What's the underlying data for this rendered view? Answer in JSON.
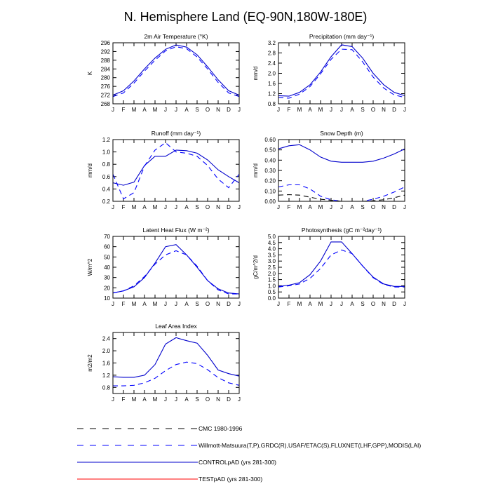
{
  "figure_title": "N. Hemisphere Land (EQ-90N,180W-180E)",
  "legend": [
    {
      "label": "CMC 1980-1996",
      "color": "#000000",
      "dash": "dash"
    },
    {
      "label": "Willmott-Matsuura(T,P),GRDC(R),USAF/ETAC(S),FLUXNET(LHF,GPP),MODIS(LAI)",
      "color": "#0000ff",
      "dash": "dash"
    },
    {
      "label": "CONTROLpAD (yrs 281-300)",
      "color": "#0000cc",
      "dash": "solid"
    },
    {
      "label": "TESTpAD (yrs 281-300)",
      "color": "#ff0000",
      "dash": "solid"
    }
  ],
  "chart_data": [
    {
      "type": "line",
      "title": "2m Air Temperature (°K)",
      "xlabel": "",
      "ylabel": "K",
      "x": [
        "J",
        "F",
        "M",
        "A",
        "M",
        "J",
        "J",
        "A",
        "S",
        "O",
        "N",
        "D",
        "J"
      ],
      "yticks": [
        "268",
        "272",
        "276",
        "280",
        "284",
        "288",
        "292",
        "296"
      ],
      "ylim": [
        268,
        296
      ],
      "series": [
        {
          "legend_index": 2,
          "values": [
            272.0,
            274.0,
            278.5,
            284.0,
            289.0,
            293.0,
            295.0,
            294.0,
            290.5,
            285.0,
            279.0,
            274.0,
            272.0
          ]
        },
        {
          "legend_index": 1,
          "values": [
            271.3,
            273.0,
            277.5,
            283.0,
            288.0,
            292.3,
            294.2,
            293.3,
            289.5,
            284.0,
            277.8,
            273.0,
            271.3
          ]
        }
      ]
    },
    {
      "type": "line",
      "title": "Precipitation (mm day⁻¹)",
      "xlabel": "",
      "ylabel": "mm/d",
      "x": [
        "J",
        "F",
        "M",
        "A",
        "M",
        "J",
        "J",
        "A",
        "S",
        "O",
        "N",
        "D",
        "J"
      ],
      "yticks": [
        "0.8",
        "1.2",
        "1.6",
        "2.0",
        "2.4",
        "2.8",
        "3.2"
      ],
      "ylim": [
        0.8,
        3.2
      ],
      "series": [
        {
          "legend_index": 2,
          "values": [
            1.12,
            1.1,
            1.25,
            1.55,
            2.05,
            2.65,
            3.12,
            3.05,
            2.6,
            2.0,
            1.55,
            1.25,
            1.12
          ]
        },
        {
          "legend_index": 1,
          "values": [
            1.05,
            1.02,
            1.18,
            1.48,
            1.98,
            2.55,
            2.95,
            2.93,
            2.45,
            1.85,
            1.42,
            1.15,
            1.05
          ]
        }
      ]
    },
    {
      "type": "line",
      "title": "Runoff (mm day⁻¹)",
      "xlabel": "",
      "ylabel": "mm/d",
      "x": [
        "J",
        "F",
        "M",
        "A",
        "M",
        "J",
        "J",
        "A",
        "S",
        "O",
        "N",
        "D",
        "J"
      ],
      "yticks": [
        "0.2",
        "0.4",
        "0.6",
        "0.8",
        "1.0",
        "1.2"
      ],
      "ylim": [
        0.2,
        1.2
      ],
      "series": [
        {
          "legend_index": 2,
          "values": [
            0.5,
            0.46,
            0.51,
            0.78,
            0.93,
            0.93,
            1.03,
            1.02,
            0.98,
            0.87,
            0.71,
            0.6,
            0.5
          ]
        },
        {
          "legend_index": 1,
          "values": [
            0.64,
            0.24,
            0.34,
            0.77,
            1.03,
            1.15,
            1.0,
            0.98,
            0.93,
            0.78,
            0.56,
            0.42,
            0.64
          ]
        }
      ]
    },
    {
      "type": "line",
      "title": "Snow Depth (m)",
      "xlabel": "",
      "ylabel": "mm/d",
      "x": [
        "J",
        "F",
        "M",
        "A",
        "M",
        "J",
        "J",
        "A",
        "S",
        "O",
        "N",
        "D",
        "J"
      ],
      "yticks": [
        "0.00",
        "0.10",
        "0.20",
        "0.30",
        "0.40",
        "0.50",
        "0.60"
      ],
      "ylim": [
        0,
        0.6
      ],
      "series": [
        {
          "legend_index": 2,
          "values": [
            0.51,
            0.54,
            0.55,
            0.5,
            0.43,
            0.39,
            0.38,
            0.38,
            0.38,
            0.39,
            0.42,
            0.46,
            0.51
          ]
        },
        {
          "legend_index": 1,
          "values": [
            0.14,
            0.16,
            0.16,
            0.12,
            0.05,
            0.015,
            0.0,
            0.0,
            0.0,
            0.02,
            0.05,
            0.09,
            0.14
          ]
        },
        {
          "legend_index": 0,
          "values": [
            0.06,
            0.065,
            0.06,
            0.04,
            0.02,
            0.01,
            0.0,
            0.0,
            0.0,
            0.005,
            0.015,
            0.035,
            0.06
          ]
        }
      ]
    },
    {
      "type": "line",
      "title": "Latent Heat Flux (W m⁻²)",
      "xlabel": "",
      "ylabel": "W/m^2",
      "x": [
        "J",
        "F",
        "M",
        "A",
        "M",
        "J",
        "J",
        "A",
        "S",
        "O",
        "N",
        "D",
        "J"
      ],
      "yticks": [
        "10",
        "20",
        "30",
        "40",
        "50",
        "60",
        "70"
      ],
      "ylim": [
        10,
        70
      ],
      "series": [
        {
          "legend_index": 2,
          "values": [
            15,
            17,
            21,
            30,
            44,
            60,
            62,
            52,
            40,
            27,
            19,
            15,
            14
          ]
        },
        {
          "legend_index": 1,
          "values": [
            15,
            17,
            22,
            31,
            43,
            52,
            56,
            52,
            41,
            27,
            18,
            14,
            14
          ]
        }
      ]
    },
    {
      "type": "line",
      "title": "Photosynthesis (gC m⁻²day⁻¹)",
      "xlabel": "",
      "ylabel": "gC/m^2/d",
      "x": [
        "J",
        "F",
        "M",
        "A",
        "M",
        "J",
        "J",
        "A",
        "S",
        "O",
        "N",
        "D",
        "J"
      ],
      "yticks": [
        "0.0",
        "0.5",
        "1.0",
        "1.5",
        "2.0",
        "2.5",
        "3.0",
        "3.5",
        "4.0",
        "4.5",
        "5.0"
      ],
      "ylim": [
        0,
        5
      ],
      "series": [
        {
          "legend_index": 2,
          "values": [
            0.95,
            1.05,
            1.25,
            1.9,
            3.0,
            4.55,
            4.55,
            3.6,
            2.6,
            1.7,
            1.15,
            0.95,
            0.95
          ]
        },
        {
          "legend_index": 1,
          "values": [
            0.9,
            1.0,
            1.15,
            1.6,
            2.4,
            3.5,
            3.9,
            3.6,
            2.6,
            1.65,
            1.1,
            0.9,
            0.9
          ]
        }
      ]
    },
    {
      "type": "line",
      "title": "Leaf Area Index",
      "xlabel": "",
      "ylabel": "m2/m2",
      "x": [
        "J",
        "F",
        "M",
        "A",
        "M",
        "J",
        "J",
        "A",
        "S",
        "O",
        "N",
        "D",
        "J"
      ],
      "yticks": [
        "0.8",
        "1.2",
        "1.6",
        "2.0",
        "2.4"
      ],
      "ylim": [
        0.6,
        2.6
      ],
      "series": [
        {
          "legend_index": 2,
          "values": [
            1.15,
            1.13,
            1.13,
            1.2,
            1.55,
            2.22,
            2.43,
            2.33,
            2.25,
            1.85,
            1.37,
            1.25,
            1.17
          ]
        },
        {
          "legend_index": 1,
          "values": [
            0.85,
            0.85,
            0.87,
            0.95,
            1.1,
            1.35,
            1.55,
            1.63,
            1.58,
            1.38,
            1.12,
            0.95,
            0.87
          ]
        }
      ]
    }
  ]
}
